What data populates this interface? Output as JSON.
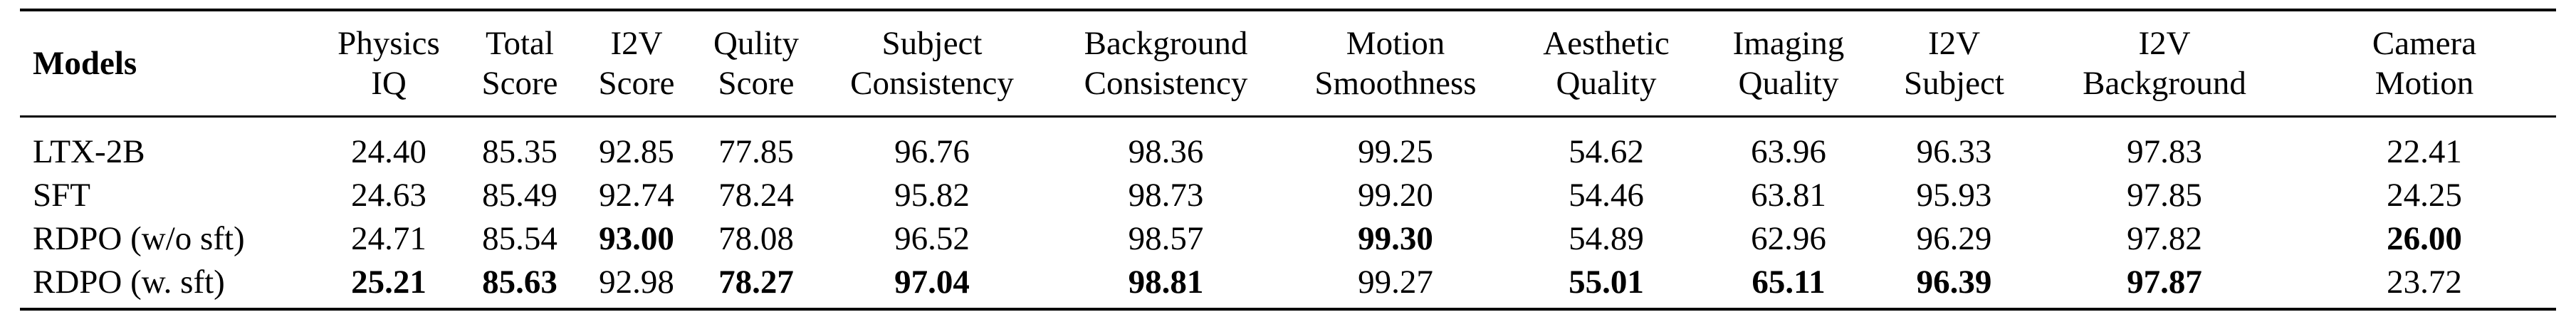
{
  "table": {
    "models_header": "Models",
    "columns": [
      {
        "line1": "Physics",
        "line2": "IQ"
      },
      {
        "line1": "Total",
        "line2": "Score"
      },
      {
        "line1": "I2V",
        "line2": "Score"
      },
      {
        "line1": "Qulity",
        "line2": "Score"
      },
      {
        "line1": "Subject",
        "line2": "Consistency"
      },
      {
        "line1": "Background",
        "line2": "Consistency"
      },
      {
        "line1": "Motion",
        "line2": "Smoothness"
      },
      {
        "line1": "Aesthetic",
        "line2": "Quality"
      },
      {
        "line1": "Imaging",
        "line2": "Quality"
      },
      {
        "line1": "I2V",
        "line2": "Subject"
      },
      {
        "line1": "I2V",
        "line2": "Background"
      },
      {
        "line1": "Camera",
        "line2": "Motion"
      }
    ],
    "rows": [
      {
        "model": "LTX-2B",
        "values": [
          "24.40",
          "85.35",
          "92.85",
          "77.85",
          "96.76",
          "98.36",
          "99.25",
          "54.62",
          "63.96",
          "96.33",
          "97.83",
          "22.41"
        ],
        "bold": [
          false,
          false,
          false,
          false,
          false,
          false,
          false,
          false,
          false,
          false,
          false,
          false
        ]
      },
      {
        "model": "SFT",
        "values": [
          "24.63",
          "85.49",
          "92.74",
          "78.24",
          "95.82",
          "98.73",
          "99.20",
          "54.46",
          "63.81",
          "95.93",
          "97.85",
          "24.25"
        ],
        "bold": [
          false,
          false,
          false,
          false,
          false,
          false,
          false,
          false,
          false,
          false,
          false,
          false
        ]
      },
      {
        "model": "RDPO (w/o sft)",
        "values": [
          "24.71",
          "85.54",
          "93.00",
          "78.08",
          "96.52",
          "98.57",
          "99.30",
          "54.89",
          "62.96",
          "96.29",
          "97.82",
          "26.00"
        ],
        "bold": [
          false,
          false,
          true,
          false,
          false,
          false,
          true,
          false,
          false,
          false,
          false,
          true
        ]
      },
      {
        "model": "RDPO (w. sft)",
        "values": [
          "25.21",
          "85.63",
          "92.98",
          "78.27",
          "97.04",
          "98.81",
          "99.27",
          "55.01",
          "65.11",
          "96.39",
          "97.87",
          "23.72"
        ],
        "bold": [
          true,
          true,
          false,
          true,
          true,
          true,
          false,
          true,
          true,
          true,
          true,
          false
        ]
      }
    ]
  }
}
